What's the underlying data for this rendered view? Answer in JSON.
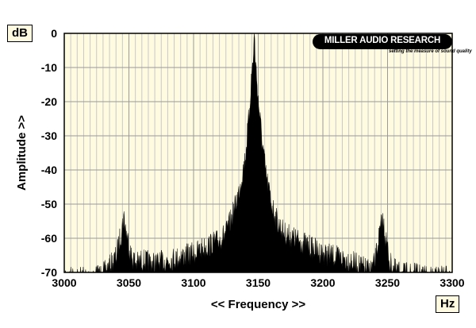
{
  "chart_data": {
    "type": "area",
    "title": "",
    "xlabel": "<< Frequency >>",
    "ylabel": "Amplitude >>",
    "x_unit": "Hz",
    "y_unit": "dB",
    "xlim": [
      3000,
      3300
    ],
    "ylim": [
      -70,
      0
    ],
    "x_ticks": [
      3000,
      3050,
      3100,
      3150,
      3200,
      3250,
      3300
    ],
    "y_ticks": [
      0,
      -10,
      -20,
      -30,
      -40,
      -50,
      -60,
      -70
    ],
    "grid": true,
    "plot_background": "#fffbe0",
    "fill_color": "#000000",
    "series": [
      {
        "x": [
          3000,
          3010,
          3020,
          3030,
          3035,
          3040,
          3044,
          3046,
          3048,
          3052,
          3056,
          3060,
          3070,
          3080,
          3090,
          3100,
          3110,
          3120,
          3125,
          3130,
          3135,
          3140,
          3143,
          3145,
          3147,
          3150,
          3153,
          3156,
          3160,
          3165,
          3170,
          3175,
          3180,
          3190,
          3200,
          3210,
          3220,
          3230,
          3236,
          3240,
          3244,
          3246,
          3248,
          3252,
          3256,
          3260,
          3270,
          3280,
          3290,
          3300
        ],
        "values": [
          -68,
          -68,
          -68,
          -67,
          -65,
          -62,
          -55,
          -50,
          -55,
          -62,
          -64,
          -63,
          -64,
          -63,
          -62,
          -61,
          -59,
          -57,
          -55,
          -50,
          -43,
          -33,
          -20,
          -8,
          0,
          -16,
          -28,
          -38,
          -46,
          -52,
          -55,
          -56,
          -57,
          -59,
          -61,
          -62,
          -63,
          -65,
          -66,
          -64,
          -55,
          -51,
          -55,
          -64,
          -66,
          -67,
          -67,
          -68,
          -68,
          -67
        ]
      }
    ]
  },
  "logo": {
    "name": "MILLER AUDIO RESEARCH",
    "tagline": "setting the measure of sound quality"
  }
}
